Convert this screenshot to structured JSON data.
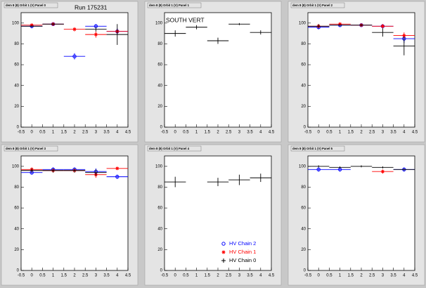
{
  "chart_data": [
    {
      "type": "scatter",
      "title": "dem 8 (8) Orbit 1 (V) Panel 0",
      "annotation": "Run 175231",
      "x": [
        0,
        1,
        2,
        3,
        4
      ],
      "x_error": 0.5,
      "xlim": [
        -0.5,
        4.5
      ],
      "xticks": [
        -0.5,
        0,
        0.5,
        1,
        1.5,
        2,
        2.5,
        3,
        3.5,
        4,
        4.5
      ],
      "ylim": [
        0,
        110
      ],
      "yticks": [
        0,
        20,
        40,
        60,
        80,
        100
      ],
      "series": [
        {
          "color": "#0000ff",
          "marker": "circle",
          "values": [
            97,
            99,
            68,
            97,
            92
          ],
          "errors": [
            2,
            1,
            3,
            2,
            3
          ]
        },
        {
          "color": "#ff0000",
          "marker": "star",
          "values": [
            98,
            99,
            94,
            89,
            92
          ],
          "errors": [
            1,
            1,
            2,
            3,
            2
          ]
        },
        {
          "color": "#000000",
          "marker": "cross",
          "values": [
            97,
            99,
            null,
            94,
            89
          ],
          "errors": [
            1,
            1,
            null,
            2,
            10
          ]
        }
      ]
    },
    {
      "type": "scatter",
      "title": "dem 8 (8) Orbit 1 (V) Panel 1",
      "annotation": "SOUTH VERT",
      "x": [
        0,
        1,
        2,
        3,
        4
      ],
      "x_error": 0.5,
      "xlim": [
        -0.5,
        4.5
      ],
      "xticks": [
        -0.5,
        0,
        0.5,
        1,
        1.5,
        2,
        2.5,
        3,
        3.5,
        4,
        4.5
      ],
      "ylim": [
        0,
        110
      ],
      "yticks": [
        0,
        20,
        40,
        60,
        80,
        100
      ],
      "series": [
        {
          "color": "#000000",
          "marker": "cross",
          "values": [
            90,
            96,
            83,
            99,
            91
          ],
          "errors": [
            3,
            2,
            3,
            1,
            2
          ]
        }
      ]
    },
    {
      "type": "scatter",
      "title": "dem 8 (8) Orbit 1 (V) Panel 2",
      "x": [
        0,
        1,
        2,
        3,
        4
      ],
      "x_error": 0.5,
      "xlim": [
        -0.5,
        4.5
      ],
      "xticks": [
        -0.5,
        0,
        0.5,
        1,
        1.5,
        2,
        2.5,
        3,
        3.5,
        4,
        4.5
      ],
      "ylim": [
        0,
        110
      ],
      "yticks": [
        0,
        20,
        40,
        60,
        80,
        100
      ],
      "series": [
        {
          "color": "#0000ff",
          "marker": "circle",
          "values": [
            96,
            98,
            98,
            97,
            85
          ],
          "errors": [
            2,
            1,
            1,
            2,
            4
          ]
        },
        {
          "color": "#ff0000",
          "marker": "star",
          "values": [
            97,
            99,
            98,
            97,
            88
          ],
          "errors": [
            2,
            1,
            1,
            2,
            3
          ]
        },
        {
          "color": "#000000",
          "marker": "cross",
          "values": [
            97,
            98,
            98,
            91,
            78
          ],
          "errors": [
            2,
            1,
            1,
            4,
            9
          ]
        }
      ]
    },
    {
      "type": "scatter",
      "title": "dem 8 (8) Orbit 1 (V) Panel 3",
      "x": [
        0,
        1,
        2,
        3,
        4
      ],
      "x_error": 0.5,
      "xlim": [
        -0.5,
        4.5
      ],
      "xticks": [
        -0.5,
        0,
        0.5,
        1,
        1.5,
        2,
        2.5,
        3,
        3.5,
        4,
        4.5
      ],
      "ylim": [
        0,
        110
      ],
      "yticks": [
        0,
        20,
        40,
        60,
        80,
        100
      ],
      "series": [
        {
          "color": "#0000ff",
          "marker": "circle",
          "values": [
            94,
            97,
            97,
            95,
            90
          ],
          "errors": [
            2,
            2,
            2,
            3,
            2
          ]
        },
        {
          "color": "#ff0000",
          "marker": "star",
          "values": [
            97,
            96,
            96,
            92,
            98
          ],
          "errors": [
            2,
            2,
            2,
            3,
            1
          ]
        },
        {
          "color": "#000000",
          "marker": "cross",
          "values": [
            96,
            96,
            96,
            94,
            null
          ],
          "errors": [
            2,
            2,
            2,
            3,
            null
          ]
        }
      ]
    },
    {
      "type": "scatter",
      "title": "dem 8 (8) Orbit 1 (V) Panel 4",
      "x": [
        0,
        1,
        2,
        3,
        4
      ],
      "x_error": 0.5,
      "xlim": [
        -0.5,
        4.5
      ],
      "xticks": [
        -0.5,
        0,
        0.5,
        1,
        1.5,
        2,
        2.5,
        3,
        3.5,
        4,
        4.5
      ],
      "ylim": [
        0,
        110
      ],
      "yticks": [
        0,
        20,
        40,
        60,
        80,
        100
      ],
      "legend": "lower right",
      "series": [
        {
          "name": "HV Chain 2",
          "color": "#0000ff",
          "marker": "circle",
          "values": [
            null,
            null,
            null,
            null,
            null
          ],
          "errors": [
            null,
            null,
            null,
            null,
            null
          ]
        },
        {
          "name": "HV Chain 1",
          "color": "#ff0000",
          "marker": "star",
          "values": [
            null,
            null,
            null,
            null,
            null
          ],
          "errors": [
            null,
            null,
            null,
            null,
            null
          ]
        },
        {
          "name": "HV Chain 0",
          "color": "#000000",
          "marker": "cross",
          "values": [
            85,
            null,
            85,
            87,
            89
          ],
          "errors": [
            5,
            null,
            4,
            5,
            4
          ]
        }
      ]
    },
    {
      "type": "scatter",
      "title": "dem 8 (8) Orbit 1 (V) Panel 5",
      "x": [
        0,
        1,
        2,
        3,
        4
      ],
      "x_error": 0.5,
      "xlim": [
        -0.5,
        4.5
      ],
      "xticks": [
        -0.5,
        0,
        0.5,
        1,
        1.5,
        2,
        2.5,
        3,
        3.5,
        4,
        4.5
      ],
      "ylim": [
        0,
        110
      ],
      "yticks": [
        0,
        20,
        40,
        60,
        80,
        100
      ],
      "series": [
        {
          "color": "#0000ff",
          "marker": "circle",
          "values": [
            97,
            97,
            null,
            null,
            97
          ],
          "errors": [
            2,
            2,
            null,
            null,
            2
          ]
        },
        {
          "color": "#ff0000",
          "marker": "star",
          "values": [
            null,
            null,
            null,
            95,
            null
          ],
          "errors": [
            null,
            null,
            null,
            2,
            null
          ]
        },
        {
          "color": "#000000",
          "marker": "cross",
          "values": [
            100,
            99,
            100,
            99,
            97
          ],
          "errors": [
            1,
            1,
            1,
            1,
            1
          ]
        }
      ]
    }
  ]
}
